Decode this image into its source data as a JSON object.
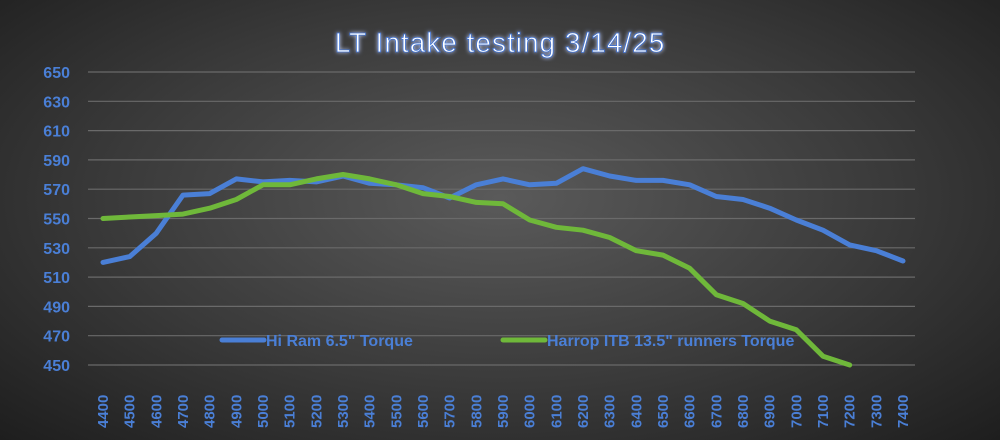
{
  "chart_data": {
    "type": "line",
    "title": "LT Intake testing 3/14/25",
    "xlabel": "",
    "ylabel": "",
    "ylim": [
      450,
      650
    ],
    "yticks": [
      450,
      470,
      490,
      510,
      530,
      550,
      570,
      590,
      610,
      630,
      650
    ],
    "categories": [
      "4400",
      "4500",
      "4600",
      "4700",
      "4800",
      "4900",
      "5000",
      "5100",
      "5200",
      "5300",
      "5400",
      "5500",
      "5600",
      "5700",
      "5800",
      "5900",
      "6000",
      "6100",
      "6200",
      "6300",
      "6400",
      "6500",
      "6600",
      "6700",
      "6800",
      "6900",
      "7000",
      "7100",
      "7200",
      "7300",
      "7400"
    ],
    "grid": true,
    "legend": "bottom-inside",
    "series": [
      {
        "name": "Hi Ram 6.5\" Torque",
        "color": "#4a7fd6",
        "values": [
          520,
          524,
          540,
          566,
          567,
          577,
          575,
          576,
          575,
          579,
          574,
          573,
          571,
          564,
          573,
          577,
          573,
          574,
          584,
          579,
          576,
          576,
          573,
          565,
          563,
          557,
          549,
          542,
          532,
          528,
          521
        ]
      },
      {
        "name": "Harrop ITB 13.5\" runners Torque",
        "color": "#6fb83a",
        "values": [
          550,
          551,
          552,
          553,
          557,
          563,
          573,
          573,
          577,
          580,
          577,
          573,
          567,
          565,
          561,
          560,
          549,
          544,
          542,
          537,
          528,
          525,
          516,
          498,
          492,
          480,
          474,
          456,
          450,
          null,
          null
        ]
      }
    ]
  }
}
